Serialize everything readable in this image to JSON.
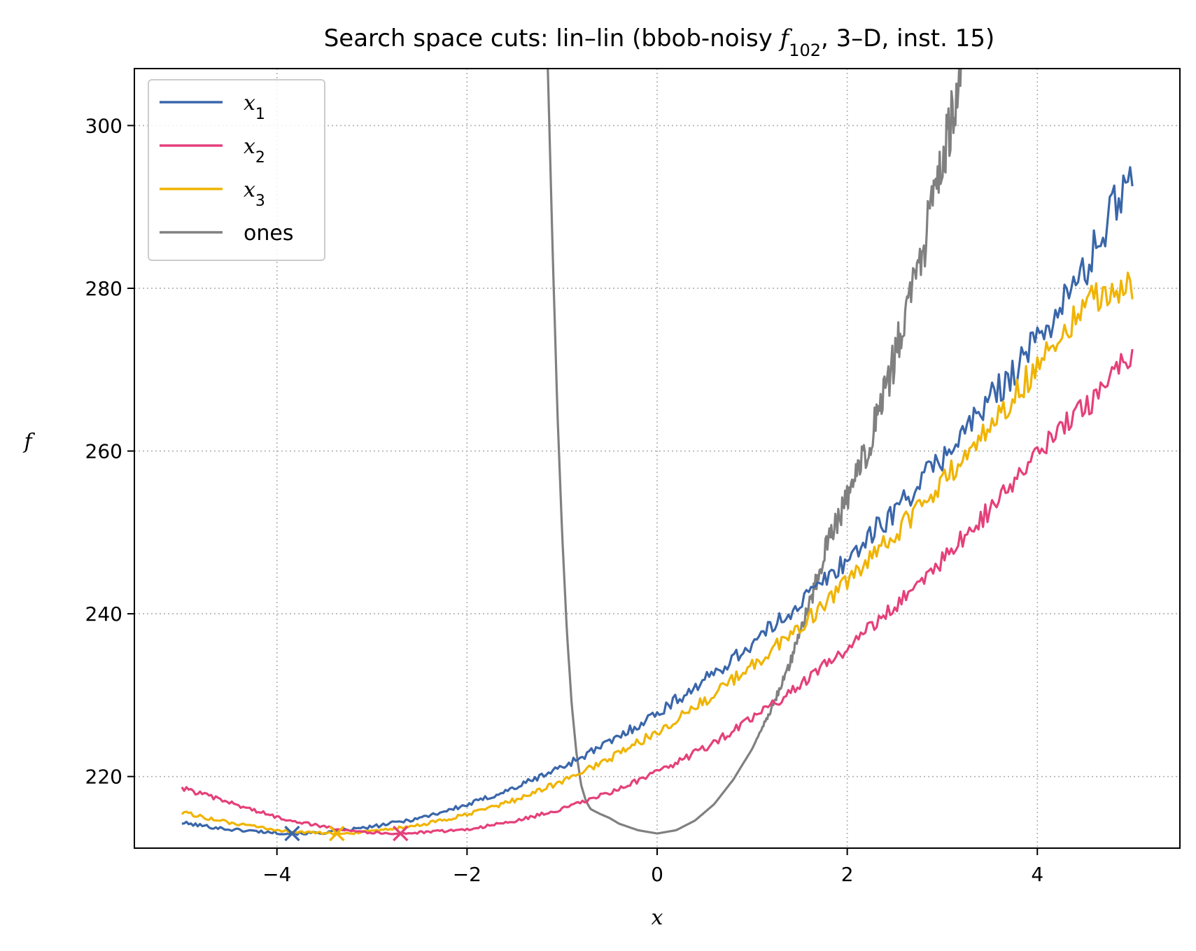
{
  "chart_data": {
    "type": "line",
    "title": "Search space cuts: lin–lin (bbob-noisy f102, 3–D, inst. 15)",
    "title_parts": {
      "before": "Search space cuts: lin–lin (bbob-noisy ",
      "func_letter": "f",
      "func_sub": "102",
      "after": ", 3–D, inst. 15)"
    },
    "xlabel": "x",
    "ylabel": "f",
    "xlim": [
      -5.5,
      5.5
    ],
    "ylim": [
      211.2,
      307
    ],
    "xticks": [
      -4,
      -2,
      0,
      2,
      4
    ],
    "xtick_labels": [
      "−4",
      "−2",
      "0",
      "2",
      "4"
    ],
    "yticks": [
      220,
      240,
      260,
      280,
      300
    ],
    "ytick_labels": [
      "220",
      "240",
      "260",
      "280",
      "300"
    ],
    "grid": true,
    "legend_position": "top-left",
    "series": [
      {
        "name": "x1",
        "label_base": "x",
        "label_sub": "1",
        "color": "#3a66aa",
        "x": [
          -5,
          -4.5,
          -4,
          -3.84,
          -3.5,
          -3,
          -2.5,
          -2,
          -1.5,
          -1,
          -0.5,
          0,
          0.5,
          1,
          1.5,
          2,
          2.5,
          3,
          3.5,
          4,
          4.5,
          5
        ],
        "y": [
          214.3,
          213.5,
          213.1,
          213.0,
          213.1,
          213.8,
          214.9,
          216.5,
          218.6,
          221.2,
          224.2,
          227.8,
          231.8,
          236.3,
          241.3,
          246.7,
          252.7,
          259.2,
          266.2,
          273.7,
          282.1,
          295.0
        ],
        "noise": 1.2,
        "minimum": {
          "x": -3.84,
          "y": 213.0
        }
      },
      {
        "name": "x2",
        "label_base": "x",
        "label_sub": "2",
        "color": "#e5407a",
        "x": [
          -5,
          -4.5,
          -4,
          -3.5,
          -3,
          -2.7,
          -2.5,
          -2,
          -1.5,
          -1,
          -0.5,
          0,
          0.5,
          1,
          1.5,
          2,
          2.5,
          3,
          3.5,
          4,
          4.5,
          5
        ],
        "y": [
          218.6,
          216.8,
          215.0,
          213.8,
          213.1,
          213.0,
          213.1,
          213.5,
          214.5,
          216.0,
          218.0,
          220.5,
          223.5,
          227.1,
          231.2,
          235.8,
          240.9,
          246.6,
          252.8,
          259.6,
          265.4,
          272.0
        ],
        "noise": 1.0,
        "minimum": {
          "x": -2.7,
          "y": 213.0
        }
      },
      {
        "name": "x3",
        "label_base": "x",
        "label_sub": "3",
        "color": "#f0b400",
        "x": [
          -5,
          -4.5,
          -4,
          -3.5,
          -3.37,
          -3,
          -2.5,
          -2,
          -1.5,
          -1,
          -0.5,
          0,
          0.5,
          1,
          1.5,
          2,
          2.5,
          3,
          3.5,
          4,
          4.5,
          5
        ],
        "y": [
          215.6,
          214.3,
          213.4,
          213.0,
          213.0,
          213.2,
          214.0,
          215.3,
          217.1,
          219.4,
          222.2,
          225.5,
          229.3,
          233.6,
          238.4,
          243.8,
          249.7,
          256.1,
          263.0,
          270.5,
          278.5,
          280.0
        ],
        "noise": 1.1,
        "minimum": {
          "x": -3.37,
          "y": 213.0
        }
      },
      {
        "name": "ones",
        "label_base": "ones",
        "label_sub": "",
        "color": "#808080",
        "x": [
          -1.15,
          -1.1,
          -1.05,
          -1.0,
          -0.95,
          -0.9,
          -0.85,
          -0.8,
          -0.75,
          -0.7,
          -0.6,
          -0.5,
          -0.4,
          -0.2,
          0,
          0.2,
          0.4,
          0.6,
          0.8,
          1.0,
          1.2,
          1.4,
          1.6,
          1.8,
          2.0,
          2.2,
          2.4,
          2.6,
          2.8,
          3.0,
          3.2
        ],
        "y": [
          307,
          285,
          265,
          250,
          238,
          229,
          223,
          219,
          217,
          216,
          215.4,
          214.9,
          214.2,
          213.4,
          213.0,
          213.4,
          214.6,
          216.6,
          219.6,
          223.4,
          228.3,
          234.1,
          241.0,
          249.0,
          254.0,
          260.0,
          267.0,
          276.0,
          285.0,
          295.0,
          307.0
        ],
        "noise_from_x": 1.0,
        "noise": 1.8
      }
    ]
  }
}
